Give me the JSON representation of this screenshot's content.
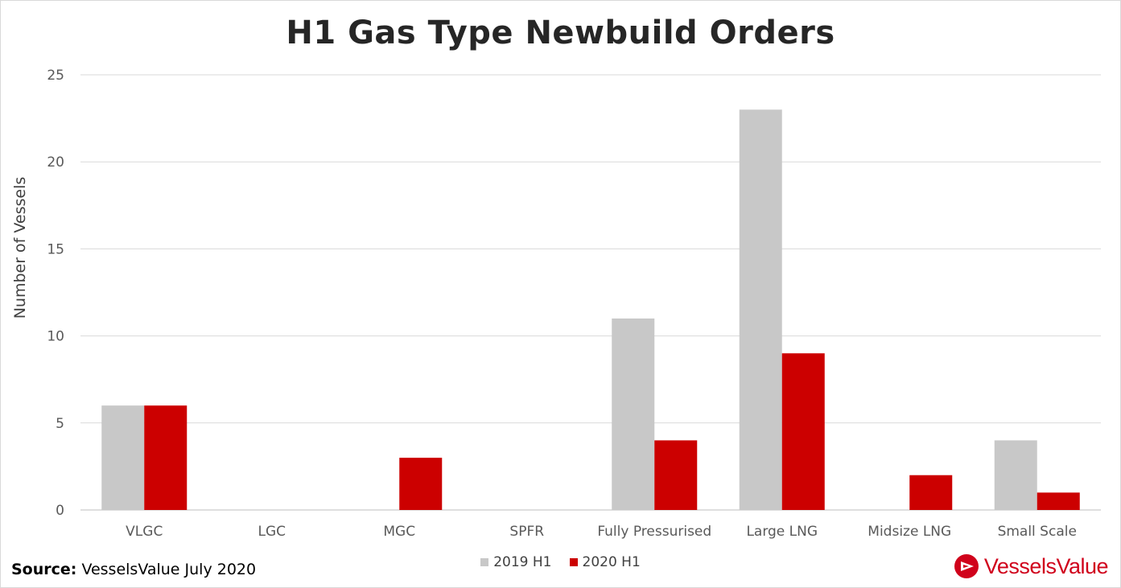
{
  "chart_data": {
    "type": "bar",
    "title": "H1 Gas Type Newbuild Orders",
    "xlabel": "",
    "ylabel": "Number of Vessels",
    "ylim": [
      0,
      25
    ],
    "yticks": [
      "0",
      "5",
      "10",
      "15",
      "20",
      "25"
    ],
    "grid": true,
    "legend_position": "bottom",
    "categories": [
      "VLGC",
      "LGC",
      "MGC",
      "SPFR",
      "Fully Pressurised",
      "Large LNG",
      "Midsize LNG",
      "Small Scale"
    ],
    "series": [
      {
        "name": "2019 H1",
        "color": "#c8c8c8",
        "values": [
          6,
          0,
          0,
          0,
          11,
          23,
          0,
          4
        ]
      },
      {
        "name": "2020 H1",
        "color": "#cc0000",
        "values": [
          6,
          0,
          3,
          0,
          4,
          9,
          2,
          1
        ]
      }
    ]
  },
  "footer": {
    "source_label": "Source:",
    "source_text": "VesselsValue July 2020",
    "brand_name": "VesselsValue",
    "brand_color": "#d0021b",
    "brand_icon": "triangle-logo-icon"
  }
}
